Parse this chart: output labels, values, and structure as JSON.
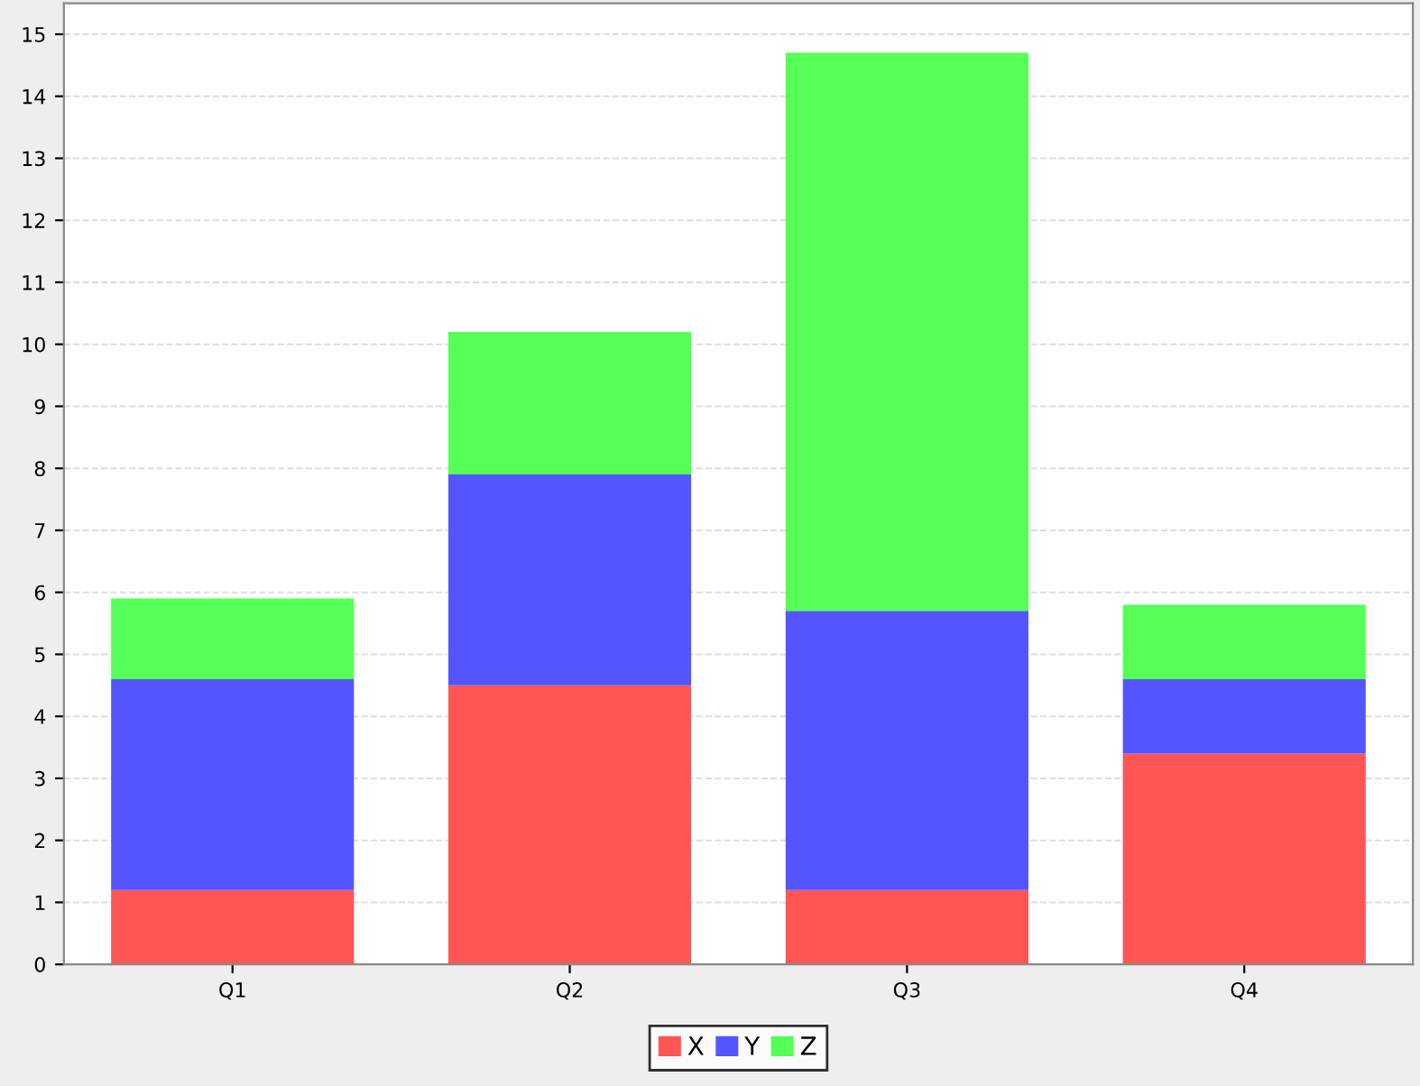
{
  "chart_data": {
    "type": "bar",
    "stacked": true,
    "categories": [
      "Q1",
      "Q2",
      "Q3",
      "Q4"
    ],
    "series": [
      {
        "name": "X",
        "color": "#ff5555",
        "values": [
          1.2,
          4.5,
          1.2,
          3.4
        ]
      },
      {
        "name": "Y",
        "color": "#5555ff",
        "values": [
          3.4,
          3.4,
          4.5,
          1.2
        ]
      },
      {
        "name": "Z",
        "color": "#55ff55",
        "values": [
          1.3,
          2.3,
          9.0,
          1.2
        ]
      }
    ],
    "ylim": [
      0,
      15.5
    ],
    "yticks": [
      0,
      1,
      2,
      3,
      4,
      5,
      6,
      7,
      8,
      9,
      10,
      11,
      12,
      13,
      14,
      15
    ],
    "grid": "y",
    "legend": "bottom"
  }
}
